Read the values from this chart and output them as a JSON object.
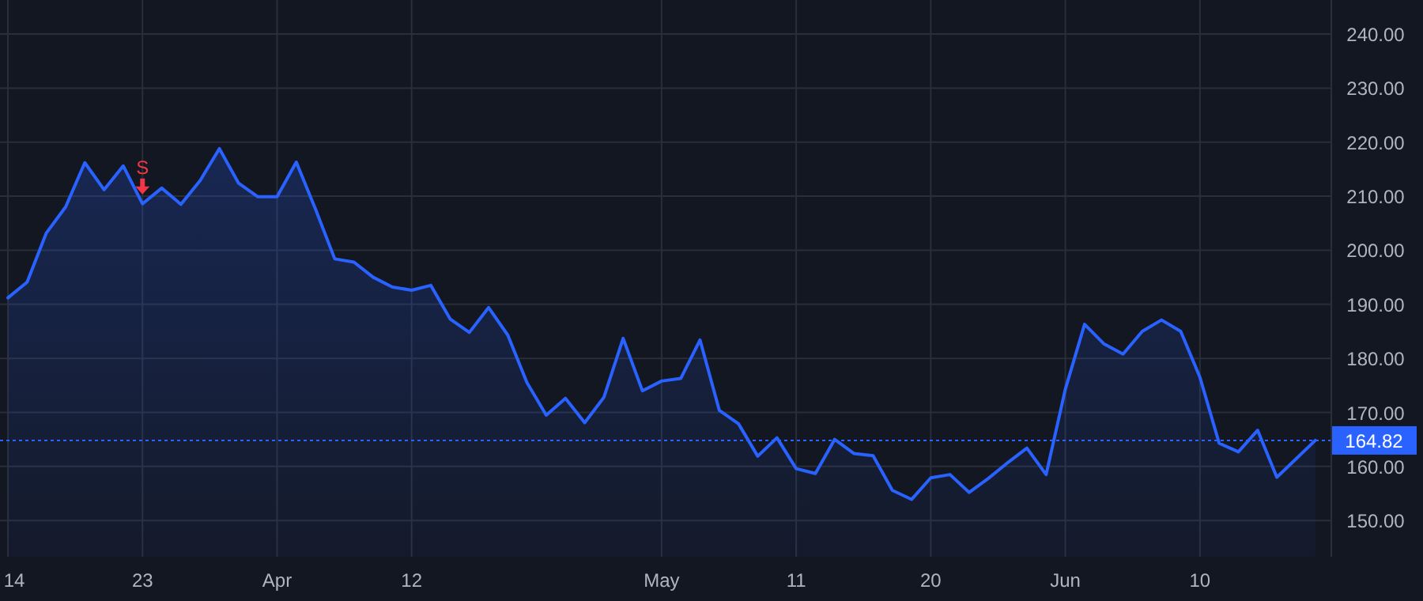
{
  "chart_data": {
    "type": "area",
    "categories": [
      "14",
      null,
      null,
      null,
      null,
      null,
      null,
      "23",
      null,
      null,
      null,
      null,
      null,
      null,
      "Apr",
      null,
      null,
      null,
      null,
      null,
      null,
      "12",
      null,
      null,
      null,
      null,
      null,
      null,
      null,
      null,
      null,
      null,
      null,
      null,
      "May",
      null,
      null,
      null,
      null,
      null,
      null,
      "11",
      null,
      null,
      null,
      null,
      null,
      null,
      "20",
      null,
      null,
      null,
      null,
      null,
      null,
      "Jun",
      null,
      null,
      null,
      null,
      null,
      null,
      "10",
      null,
      null,
      null,
      null,
      null,
      null
    ],
    "series": [
      {
        "color": "#2962ff",
        "values": [
          191.2,
          194.1,
          203.2,
          208.0,
          216.2,
          211.2,
          215.6,
          208.6,
          211.5,
          208.5,
          212.9,
          218.8,
          212.4,
          209.9,
          209.9,
          216.3,
          207.6,
          198.4,
          197.8,
          195.0,
          193.2,
          192.6,
          193.5,
          187.3,
          184.8,
          189.4,
          184.3,
          175.5,
          169.5,
          172.6,
          168.1,
          172.8,
          183.7,
          174.0,
          175.8,
          176.3,
          183.4,
          170.4,
          167.9,
          161.9,
          165.3,
          159.6,
          158.7,
          165.0,
          162.4,
          162.0,
          155.6,
          153.9,
          157.9,
          158.5,
          155.2,
          157.8,
          160.7,
          163.4,
          158.5,
          174.3,
          186.3,
          182.7,
          180.8,
          185.0,
          187.1,
          185.0,
          176.5,
          164.3,
          162.7,
          166.7,
          158.0,
          161.4,
          164.82
        ]
      }
    ],
    "ylim": [
      143.3,
      246.3
    ],
    "yticks": [
      {
        "value": 150,
        "label": "150.00"
      },
      {
        "value": 160,
        "label": "160.00"
      },
      {
        "value": 170,
        "label": "170.00"
      },
      {
        "value": 180,
        "label": "180.00"
      },
      {
        "value": 190,
        "label": "190.00"
      },
      {
        "value": 200,
        "label": "200.00"
      },
      {
        "value": 210,
        "label": "210.00"
      },
      {
        "value": 220,
        "label": "220.00"
      },
      {
        "value": 230,
        "label": "230.00"
      },
      {
        "value": 240,
        "label": "240.00"
      }
    ],
    "grid": true,
    "ref_lines": [
      {
        "axis": "y",
        "value": 164.82,
        "label": "164.82",
        "color": "#2962ff",
        "line_style": "dotted"
      }
    ],
    "annotations": [
      {
        "text": "S",
        "x": "23",
        "y": 208.6
      }
    ]
  }
}
